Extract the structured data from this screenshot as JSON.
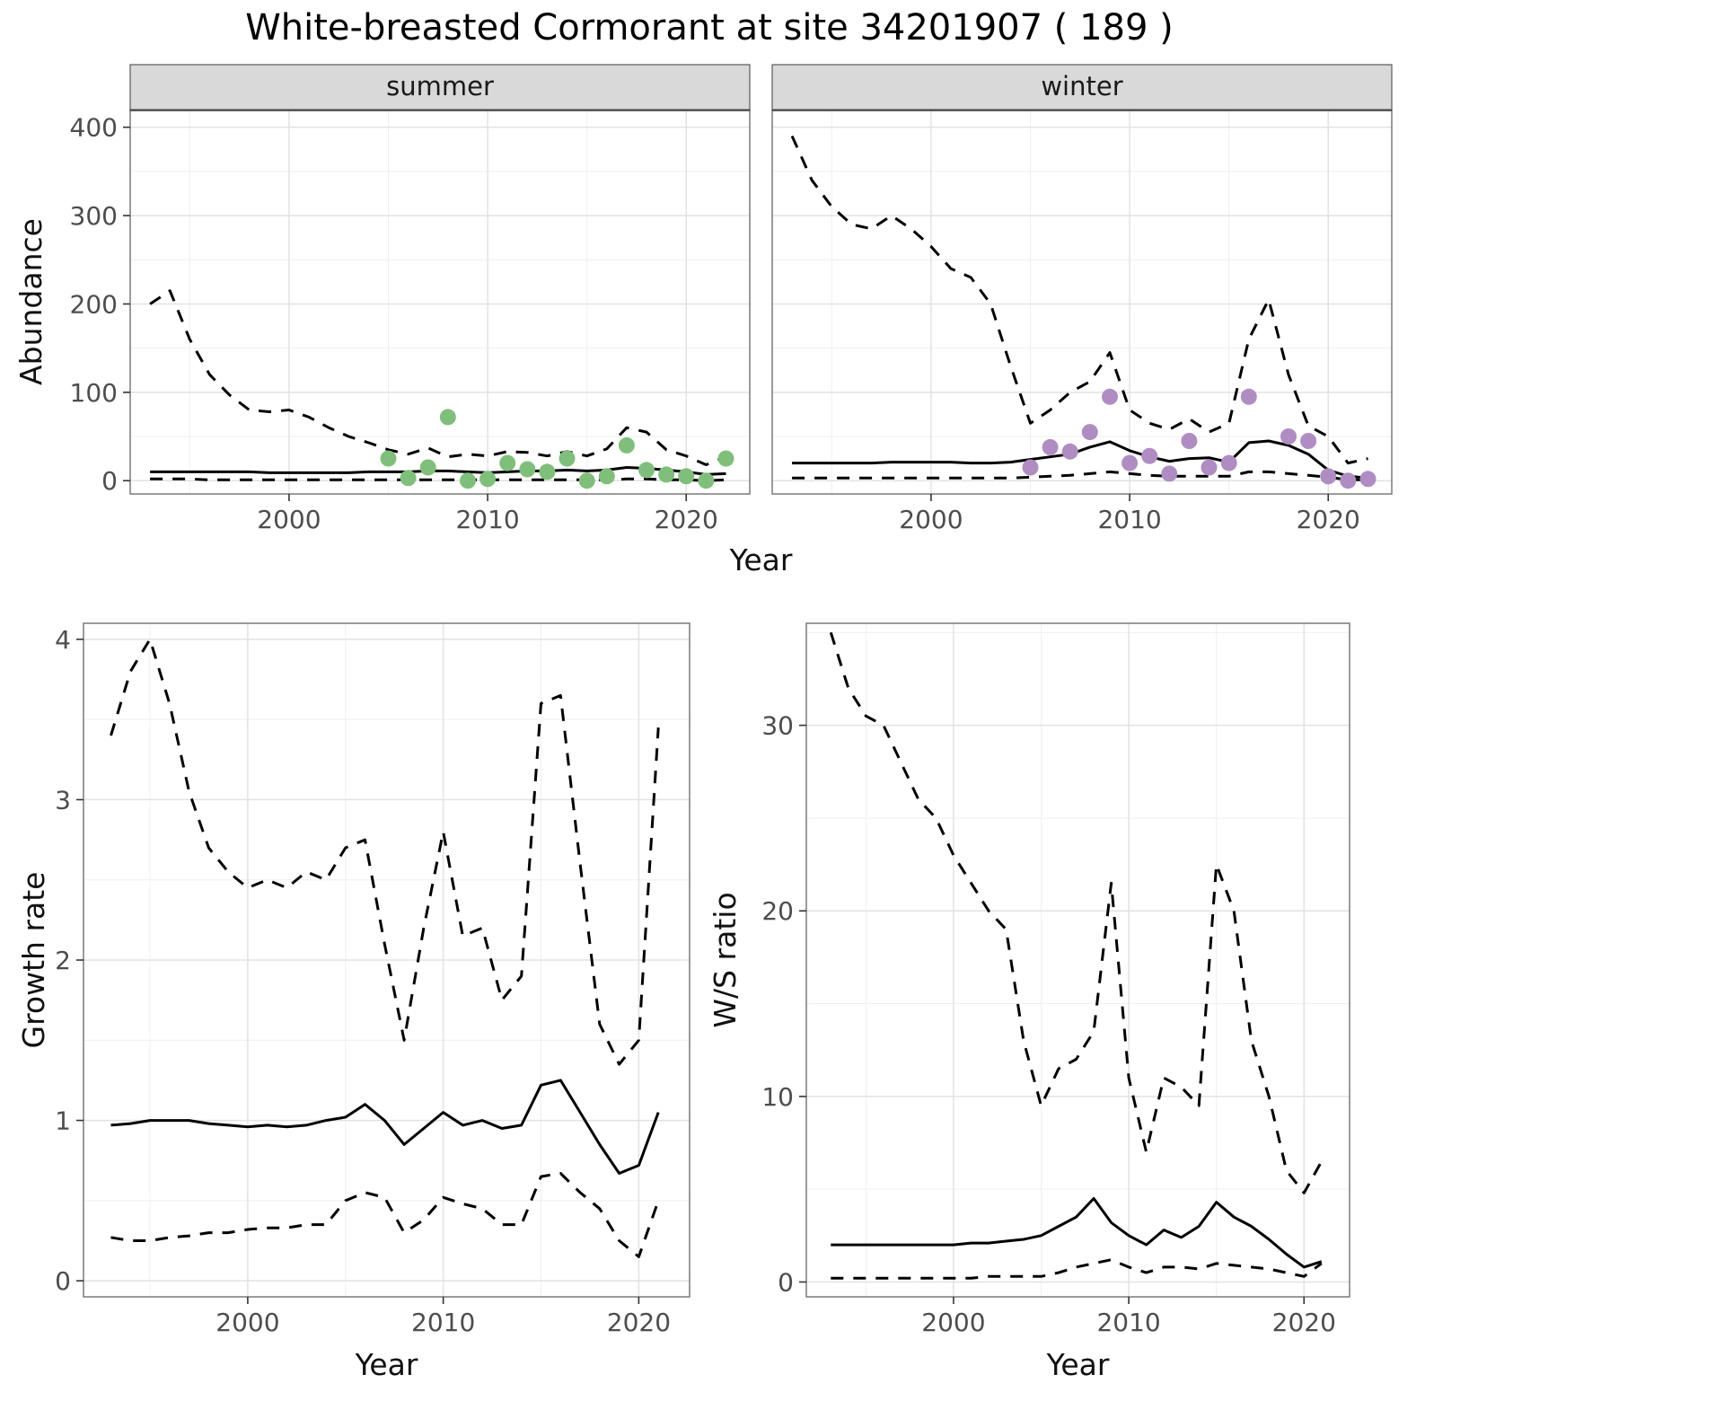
{
  "title": "White-breasted Cormorant at site 34201907 ( 189 )",
  "axis_titles": {
    "abundance": "Abundance",
    "year": "Year",
    "growth_rate": "Growth rate",
    "ws_ratio": "W/S ratio"
  },
  "colors": {
    "summer_points": "#7fbf7b",
    "winter_points": "#af8dc3",
    "line": "#000000",
    "strip_bg": "#d9d9d9",
    "strip_border": "#595959",
    "panel_border": "#7a7a7a",
    "grid_major": "#e2e2e2",
    "grid_minor": "#efefef",
    "tick_text": "#4d4d4d",
    "dark_top": "#333333"
  },
  "chart_data": [
    {
      "type": "line",
      "facet": "summer",
      "xlabel": "Year",
      "ylabel": "Abundance",
      "xlim": [
        1992,
        2023.2
      ],
      "ylim": [
        -15,
        420
      ],
      "xticks": [
        2000,
        2010,
        2020
      ],
      "yticks": [
        0,
        100,
        200,
        300,
        400
      ],
      "show_y_tick_labels": true,
      "dark_top_border": true,
      "x": [
        1993,
        1994,
        1995,
        1996,
        1997,
        1998,
        1999,
        2000,
        2001,
        2002,
        2003,
        2004,
        2005,
        2006,
        2007,
        2008,
        2009,
        2010,
        2011,
        2012,
        2013,
        2014,
        2015,
        2016,
        2017,
        2018,
        2019,
        2020,
        2021,
        2022
      ],
      "series": [
        {
          "name": "upper-95ci",
          "style": "dashed",
          "y": [
            200,
            215,
            160,
            120,
            97,
            80,
            78,
            80,
            72,
            60,
            50,
            43,
            35,
            30,
            37,
            27,
            30,
            28,
            33,
            32,
            28,
            33,
            28,
            36,
            60,
            55,
            35,
            28,
            18,
            27
          ]
        },
        {
          "name": "model-fit",
          "style": "solid",
          "y": [
            10,
            10,
            10,
            10,
            10,
            10,
            9,
            9,
            9,
            9,
            9,
            10,
            10,
            10,
            11,
            11,
            10,
            9,
            10,
            11,
            11,
            12,
            11,
            12,
            15,
            14,
            12,
            10,
            7,
            8
          ]
        },
        {
          "name": "lower-95ci",
          "style": "dashed",
          "y": [
            2,
            2,
            2,
            1,
            1,
            1,
            1,
            1,
            1,
            1,
            1,
            1,
            1,
            1,
            1,
            1,
            1,
            1,
            1,
            1,
            1,
            1,
            1,
            1,
            2,
            2,
            1,
            1,
            0,
            1
          ]
        },
        {
          "name": "observed-counts",
          "style": "points",
          "color": "#7fbf7b",
          "x": [
            2005,
            2006,
            2007,
            2008,
            2009,
            2010,
            2011,
            2012,
            2013,
            2014,
            2015,
            2016,
            2017,
            2018,
            2019,
            2020,
            2021,
            2022
          ],
          "y": [
            25,
            3,
            15,
            72,
            0,
            2,
            20,
            13,
            10,
            25,
            0,
            5,
            40,
            12,
            7,
            5,
            0,
            25
          ]
        }
      ]
    },
    {
      "type": "line",
      "facet": "winter",
      "xlabel": "Year",
      "ylabel": "Abundance",
      "xlim": [
        1992,
        2023.2
      ],
      "ylim": [
        -15,
        420
      ],
      "xticks": [
        2000,
        2010,
        2020
      ],
      "yticks": [
        0,
        100,
        200,
        300,
        400
      ],
      "show_y_tick_labels": false,
      "dark_top_border": true,
      "x": [
        1993,
        1994,
        1995,
        1996,
        1997,
        1998,
        1999,
        2000,
        2001,
        2002,
        2003,
        2004,
        2005,
        2006,
        2007,
        2008,
        2009,
        2010,
        2011,
        2012,
        2013,
        2014,
        2015,
        2016,
        2017,
        2018,
        2019,
        2020,
        2021,
        2022
      ],
      "series": [
        {
          "name": "upper-95ci",
          "style": "dashed",
          "y": [
            390,
            340,
            310,
            290,
            285,
            300,
            285,
            265,
            240,
            230,
            200,
            130,
            65,
            80,
            100,
            112,
            145,
            80,
            65,
            58,
            70,
            55,
            65,
            160,
            205,
            120,
            62,
            50,
            20,
            25
          ]
        },
        {
          "name": "model-fit",
          "style": "solid",
          "y": [
            20,
            20,
            20,
            20,
            20,
            21,
            21,
            21,
            21,
            20,
            20,
            21,
            24,
            27,
            30,
            38,
            44,
            34,
            27,
            22,
            25,
            26,
            21,
            43,
            45,
            40,
            30,
            12,
            5,
            3
          ]
        },
        {
          "name": "lower-95ci",
          "style": "dashed",
          "y": [
            3,
            3,
            3,
            3,
            3,
            3,
            3,
            3,
            3,
            3,
            3,
            3,
            4,
            5,
            6,
            8,
            10,
            8,
            6,
            5,
            5,
            5,
            5,
            10,
            10,
            8,
            6,
            4,
            1,
            1
          ]
        },
        {
          "name": "observed-counts",
          "style": "points",
          "color": "#af8dc3",
          "x": [
            2005,
            2006,
            2007,
            2008,
            2009,
            2010,
            2011,
            2012,
            2013,
            2014,
            2015,
            2016,
            2018,
            2019,
            2020,
            2021,
            2022
          ],
          "y": [
            15,
            38,
            33,
            55,
            95,
            20,
            28,
            8,
            45,
            15,
            20,
            95,
            50,
            45,
            5,
            0,
            2
          ]
        }
      ]
    },
    {
      "type": "line",
      "facet": null,
      "xlabel": "Year",
      "ylabel": "Growth rate",
      "xlim": [
        1991.6,
        2022.6
      ],
      "ylim": [
        -0.1,
        4.1
      ],
      "xticks": [
        2000,
        2010,
        2020
      ],
      "yticks": [
        0,
        1,
        2,
        3,
        4
      ],
      "show_y_tick_labels": true,
      "dark_top_border": false,
      "x": [
        1993,
        1994,
        1995,
        1996,
        1997,
        1998,
        1999,
        2000,
        2001,
        2002,
        2003,
        2004,
        2005,
        2006,
        2007,
        2008,
        2009,
        2010,
        2011,
        2012,
        2013,
        2014,
        2015,
        2016,
        2017,
        2018,
        2019,
        2020,
        2021
      ],
      "series": [
        {
          "name": "upper-95ci",
          "style": "dashed",
          "y": [
            3.4,
            3.8,
            4.0,
            3.6,
            3.05,
            2.7,
            2.55,
            2.45,
            2.5,
            2.45,
            2.55,
            2.5,
            2.7,
            2.75,
            2.1,
            1.5,
            2.2,
            2.8,
            2.15,
            2.2,
            1.75,
            1.9,
            3.6,
            3.65,
            2.6,
            1.6,
            1.35,
            1.5,
            3.45
          ]
        },
        {
          "name": "model-fit",
          "style": "solid",
          "y": [
            0.97,
            0.98,
            1.0,
            1.0,
            1.0,
            0.98,
            0.97,
            0.96,
            0.97,
            0.96,
            0.97,
            1.0,
            1.02,
            1.1,
            1.0,
            0.85,
            0.95,
            1.05,
            0.97,
            1.0,
            0.95,
            0.97,
            1.22,
            1.25,
            1.05,
            0.85,
            0.67,
            0.72,
            1.05
          ]
        },
        {
          "name": "lower-95ci",
          "style": "dashed",
          "y": [
            0.27,
            0.25,
            0.25,
            0.27,
            0.28,
            0.3,
            0.3,
            0.32,
            0.33,
            0.33,
            0.35,
            0.35,
            0.5,
            0.55,
            0.52,
            0.3,
            0.38,
            0.52,
            0.48,
            0.45,
            0.35,
            0.35,
            0.65,
            0.67,
            0.55,
            0.45,
            0.25,
            0.15,
            0.5
          ]
        }
      ]
    },
    {
      "type": "line",
      "facet": null,
      "xlabel": "Year",
      "ylabel": "W/S ratio",
      "xlim": [
        1991.6,
        2022.6
      ],
      "ylim": [
        -0.8,
        35.5
      ],
      "xticks": [
        2000,
        2010,
        2020
      ],
      "yticks": [
        0,
        10,
        20,
        30
      ],
      "show_y_tick_labels": true,
      "dark_top_border": false,
      "x": [
        1993,
        1994,
        1995,
        1996,
        1997,
        1998,
        1999,
        2000,
        2001,
        2002,
        2003,
        2004,
        2005,
        2006,
        2007,
        2008,
        2009,
        2010,
        2011,
        2012,
        2013,
        2014,
        2015,
        2016,
        2017,
        2018,
        2019,
        2020,
        2021
      ],
      "series": [
        {
          "name": "upper-95ci",
          "style": "dashed",
          "y": [
            35.0,
            32.0,
            30.5,
            30.0,
            28.0,
            26.0,
            25.0,
            23.0,
            21.5,
            20.0,
            19.0,
            13.0,
            9.5,
            11.5,
            12.0,
            13.5,
            21.5,
            11.0,
            7.0,
            11.0,
            10.5,
            9.5,
            22.5,
            20.0,
            13.0,
            10.0,
            6.0,
            4.8,
            6.5
          ]
        },
        {
          "name": "model-fit",
          "style": "solid",
          "y": [
            2.0,
            2.0,
            2.0,
            2.0,
            2.0,
            2.0,
            2.0,
            2.0,
            2.1,
            2.1,
            2.2,
            2.3,
            2.5,
            3.0,
            3.5,
            4.5,
            3.2,
            2.5,
            2.0,
            2.8,
            2.4,
            3.0,
            4.3,
            3.5,
            3.0,
            2.3,
            1.5,
            0.8,
            1.1
          ]
        },
        {
          "name": "lower-95ci",
          "style": "dashed",
          "y": [
            0.2,
            0.2,
            0.2,
            0.2,
            0.2,
            0.2,
            0.2,
            0.2,
            0.2,
            0.3,
            0.3,
            0.3,
            0.3,
            0.5,
            0.8,
            1.0,
            1.2,
            0.8,
            0.5,
            0.8,
            0.8,
            0.7,
            1.0,
            0.9,
            0.8,
            0.7,
            0.5,
            0.3,
            1.0
          ]
        }
      ]
    }
  ]
}
